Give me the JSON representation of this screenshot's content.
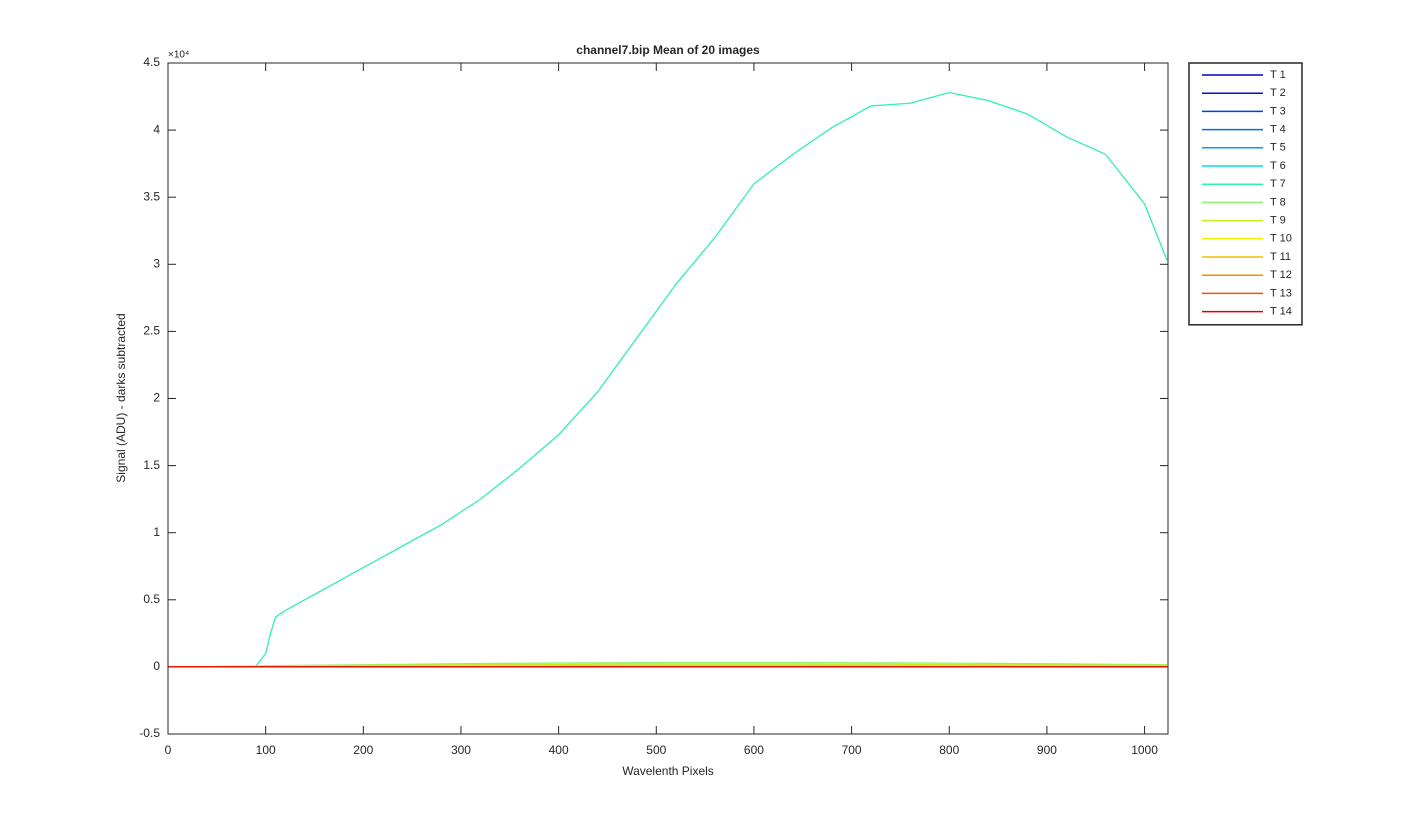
{
  "chart_data": {
    "type": "line",
    "title": "channel7.bip  Mean of 20 images",
    "x_label": "Wavelenth Pixels",
    "y_label": "Signal (ADU) - darks subtracted",
    "y_multiplier": "×10⁴",
    "xlim": [
      0,
      1024
    ],
    "ylim": [
      -5000,
      45000
    ],
    "xticks": [
      0,
      100,
      200,
      300,
      400,
      500,
      600,
      700,
      800,
      900,
      1000
    ],
    "yticks": [
      {
        "value": -5000,
        "label": "-0.5"
      },
      {
        "value": 0,
        "label": "0"
      },
      {
        "value": 5000,
        "label": "0.5"
      },
      {
        "value": 10000,
        "label": "1"
      },
      {
        "value": 15000,
        "label": "1.5"
      },
      {
        "value": 20000,
        "label": "2"
      },
      {
        "value": 25000,
        "label": "2.5"
      },
      {
        "value": 30000,
        "label": "3"
      },
      {
        "value": 35000,
        "label": "3.5"
      },
      {
        "value": 40000,
        "label": "4"
      },
      {
        "value": 45000,
        "label": "4.5"
      }
    ],
    "legend": "outside-top-right",
    "x": [
      0,
      40,
      80,
      90,
      100,
      105,
      110,
      120,
      160,
      200,
      240,
      280,
      320,
      360,
      400,
      440,
      480,
      520,
      560,
      600,
      640,
      680,
      720,
      760,
      800,
      840,
      880,
      920,
      960,
      1000,
      1023
    ],
    "series": [
      {
        "name": "T 1",
        "color": "#0000bf",
        "values": [
          0,
          0,
          0,
          0,
          0,
          0,
          0,
          0,
          0,
          0,
          0,
          0,
          0,
          0,
          0,
          0,
          0,
          0,
          0,
          0,
          0,
          0,
          0,
          0,
          0,
          0,
          0,
          0,
          0,
          0,
          0
        ]
      },
      {
        "name": "T 2",
        "color": "#0010d0",
        "values": [
          0,
          0,
          0,
          0,
          0,
          0,
          0,
          0,
          0,
          0,
          0,
          0,
          0,
          0,
          0,
          0,
          0,
          0,
          0,
          0,
          0,
          0,
          0,
          0,
          0,
          0,
          0,
          0,
          0,
          0,
          0
        ]
      },
      {
        "name": "T 3",
        "color": "#0040e0",
        "values": [
          0,
          0,
          0,
          0,
          0,
          0,
          0,
          0,
          0,
          0,
          0,
          0,
          0,
          0,
          0,
          0,
          0,
          0,
          0,
          0,
          0,
          0,
          0,
          0,
          0,
          0,
          0,
          0,
          0,
          0,
          0
        ]
      },
      {
        "name": "T 4",
        "color": "#0070e0",
        "values": [
          0,
          0,
          0,
          0,
          0,
          0,
          0,
          0,
          0,
          0,
          0,
          0,
          0,
          0,
          0,
          0,
          0,
          0,
          0,
          0,
          0,
          0,
          0,
          0,
          0,
          0,
          0,
          0,
          0,
          0,
          0
        ]
      },
      {
        "name": "T 5",
        "color": "#00a0e8",
        "values": [
          0,
          0,
          0,
          0,
          0,
          0,
          0,
          0,
          0,
          0,
          0,
          0,
          0,
          0,
          0,
          0,
          0,
          0,
          0,
          0,
          0,
          0,
          0,
          0,
          0,
          0,
          0,
          0,
          0,
          0,
          0
        ]
      },
      {
        "name": "T 6",
        "color": "#00e0e0",
        "values": [
          0,
          5,
          10,
          10,
          15,
          15,
          15,
          20,
          30,
          40,
          50,
          60,
          70,
          80,
          90,
          100,
          100,
          100,
          100,
          100,
          100,
          100,
          100,
          100,
          90,
          90,
          80,
          70,
          60,
          60,
          50
        ]
      },
      {
        "name": "T 7",
        "color": "#30f0b0",
        "values": [
          0,
          0,
          0,
          50,
          1000,
          2500,
          3700,
          4200,
          5800,
          7400,
          9000,
          10600,
          12500,
          14800,
          17300,
          20500,
          24500,
          28500,
          32000,
          36000,
          38200,
          40200,
          41800,
          42000,
          42800,
          42200,
          41200,
          39500,
          38200,
          34500,
          30300
        ]
      },
      {
        "name": "T 8",
        "color": "#90f070",
        "values": [
          0,
          20,
          60,
          70,
          80,
          85,
          90,
          100,
          130,
          160,
          190,
          220,
          250,
          270,
          290,
          300,
          310,
          320,
          320,
          320,
          320,
          310,
          300,
          290,
          280,
          260,
          240,
          220,
          200,
          180,
          160
        ]
      },
      {
        "name": "T 9",
        "color": "#c0f020",
        "values": [
          0,
          15,
          40,
          45,
          50,
          55,
          60,
          70,
          90,
          110,
          130,
          150,
          170,
          180,
          190,
          200,
          210,
          210,
          210,
          210,
          210,
          200,
          200,
          190,
          180,
          170,
          160,
          150,
          130,
          120,
          110
        ]
      },
      {
        "name": "T 10",
        "color": "#f0f000",
        "values": [
          0,
          10,
          20,
          20,
          25,
          25,
          30,
          35,
          45,
          55,
          65,
          75,
          85,
          90,
          95,
          100,
          100,
          100,
          100,
          100,
          100,
          100,
          100,
          95,
          90,
          85,
          80,
          75,
          65,
          60,
          55
        ]
      },
      {
        "name": "T 11",
        "color": "#f0c000",
        "values": [
          0,
          5,
          10,
          10,
          10,
          10,
          15,
          15,
          20,
          25,
          30,
          35,
          40,
          45,
          45,
          50,
          50,
          50,
          50,
          50,
          50,
          50,
          50,
          45,
          45,
          40,
          40,
          35,
          30,
          30,
          25
        ]
      },
      {
        "name": "T 12",
        "color": "#f09000",
        "values": [
          0,
          0,
          5,
          5,
          5,
          5,
          5,
          5,
          10,
          10,
          15,
          15,
          20,
          20,
          20,
          25,
          25,
          25,
          25,
          25,
          25,
          25,
          25,
          20,
          20,
          20,
          20,
          15,
          15,
          15,
          10
        ]
      },
      {
        "name": "T 13",
        "color": "#f05000",
        "values": [
          0,
          0,
          0,
          0,
          0,
          0,
          0,
          0,
          5,
          5,
          5,
          5,
          10,
          10,
          10,
          10,
          10,
          10,
          10,
          10,
          10,
          10,
          10,
          10,
          10,
          10,
          10,
          5,
          5,
          5,
          5
        ]
      },
      {
        "name": "T 14",
        "color": "#e00000",
        "values": [
          0,
          0,
          0,
          0,
          0,
          0,
          0,
          0,
          0,
          0,
          0,
          0,
          0,
          0,
          0,
          0,
          0,
          0,
          0,
          0,
          0,
          0,
          0,
          0,
          0,
          0,
          0,
          0,
          0,
          0,
          0
        ]
      }
    ]
  }
}
